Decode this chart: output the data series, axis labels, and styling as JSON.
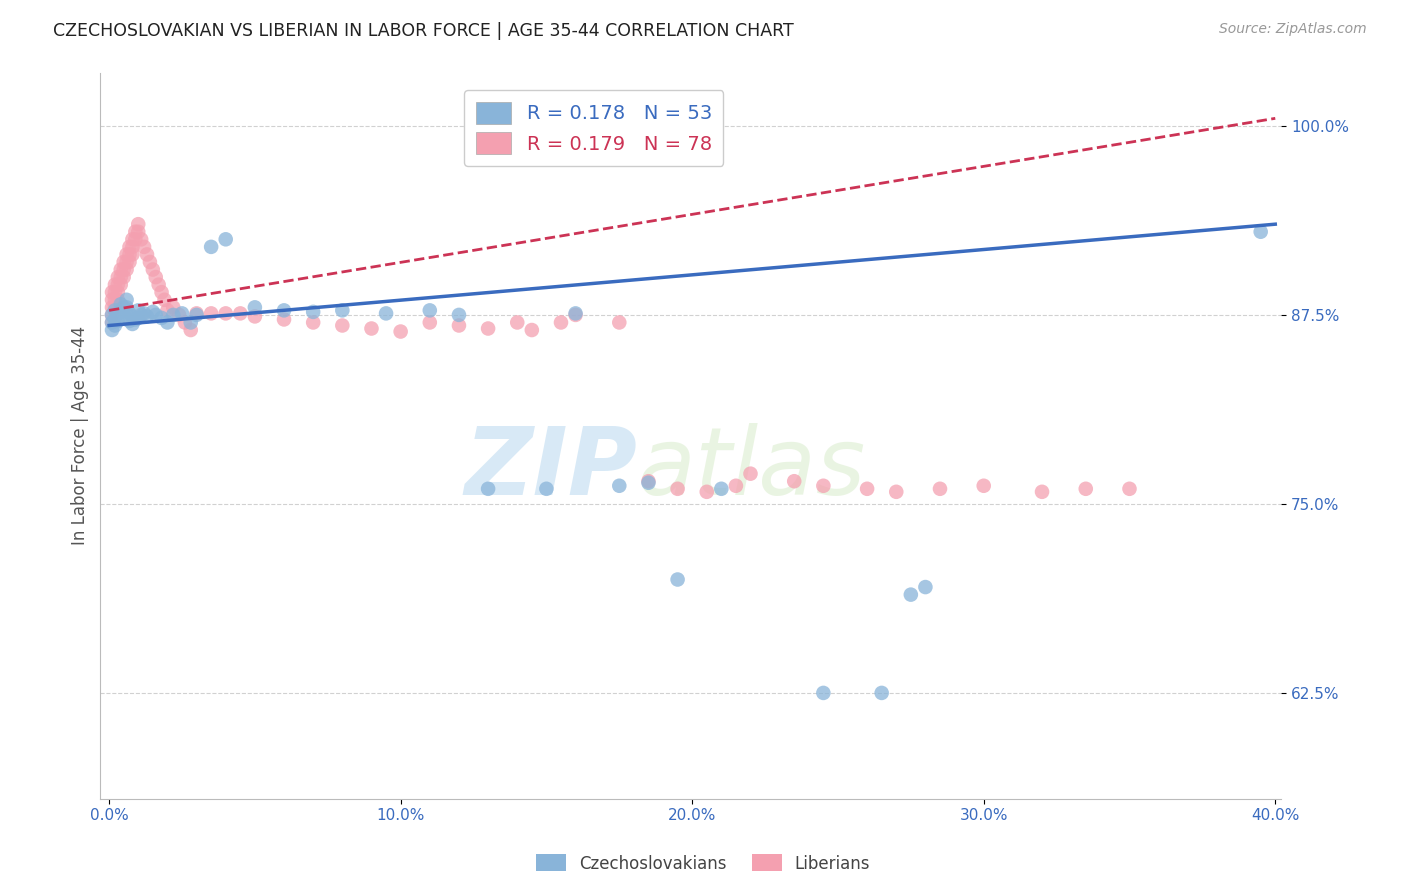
{
  "title": "CZECHOSLOVAKIAN VS LIBERIAN IN LABOR FORCE | AGE 35-44 CORRELATION CHART",
  "source": "Source: ZipAtlas.com",
  "ylabel": "In Labor Force | Age 35-44",
  "group1_label": "Czechoslovakians",
  "group2_label": "Liberians",
  "group1_color": "#89b4d9",
  "group2_color": "#f4a0b0",
  "trend1_color": "#3a6bbf",
  "trend2_color": "#cc3355",
  "xlim": [
    -0.003,
    0.402
  ],
  "ylim": [
    0.555,
    1.035
  ],
  "yticks": [
    0.625,
    0.75,
    0.875,
    1.0
  ],
  "ytick_labels": [
    "62.5%",
    "75.0%",
    "87.5%",
    "100.0%"
  ],
  "xticks": [
    0.0,
    0.1,
    0.2,
    0.3,
    0.4
  ],
  "xtick_labels": [
    "0.0%",
    "10.0%",
    "20.0%",
    "30.0%",
    "40.0%"
  ],
  "R1": 0.178,
  "N1": 53,
  "R2": 0.179,
  "N2": 78,
  "watermark_zip": "ZIP",
  "watermark_atlas": "atlas",
  "background_color": "#ffffff",
  "grid_color": "#cccccc",
  "trend1_x0": 0.0,
  "trend1_y0": 0.868,
  "trend1_x1": 0.4,
  "trend1_y1": 0.935,
  "trend2_x0": 0.0,
  "trend2_y0": 0.878,
  "trend2_x1": 0.4,
  "trend2_y1": 1.005,
  "czech_x": [
    0.001,
    0.001,
    0.001,
    0.002,
    0.002,
    0.002,
    0.003,
    0.003,
    0.004,
    0.004,
    0.005,
    0.005,
    0.006,
    0.006,
    0.007,
    0.007,
    0.008,
    0.008,
    0.009,
    0.01,
    0.01,
    0.011,
    0.012,
    0.013,
    0.015,
    0.016,
    0.018,
    0.02,
    0.022,
    0.025,
    0.028,
    0.03,
    0.035,
    0.04,
    0.05,
    0.06,
    0.07,
    0.08,
    0.095,
    0.11,
    0.12,
    0.13,
    0.15,
    0.16,
    0.175,
    0.185,
    0.195,
    0.21,
    0.245,
    0.265,
    0.275,
    0.28,
    0.395
  ],
  "czech_y": [
    0.875,
    0.87,
    0.865,
    0.878,
    0.872,
    0.868,
    0.876,
    0.871,
    0.882,
    0.877,
    0.88,
    0.875,
    0.885,
    0.88,
    0.876,
    0.871,
    0.874,
    0.869,
    0.872,
    0.878,
    0.873,
    0.875,
    0.876,
    0.874,
    0.877,
    0.875,
    0.873,
    0.87,
    0.875,
    0.876,
    0.87,
    0.875,
    0.92,
    0.925,
    0.88,
    0.878,
    0.877,
    0.878,
    0.876,
    0.878,
    0.875,
    0.76,
    0.76,
    0.876,
    0.762,
    0.764,
    0.7,
    0.76,
    0.625,
    0.625,
    0.69,
    0.695,
    0.93
  ],
  "liberian_x": [
    0.001,
    0.001,
    0.001,
    0.001,
    0.001,
    0.002,
    0.002,
    0.002,
    0.002,
    0.003,
    0.003,
    0.003,
    0.003,
    0.004,
    0.004,
    0.004,
    0.005,
    0.005,
    0.005,
    0.006,
    0.006,
    0.006,
    0.007,
    0.007,
    0.007,
    0.008,
    0.008,
    0.008,
    0.009,
    0.009,
    0.01,
    0.01,
    0.011,
    0.012,
    0.013,
    0.014,
    0.015,
    0.016,
    0.017,
    0.018,
    0.019,
    0.02,
    0.022,
    0.024,
    0.026,
    0.028,
    0.03,
    0.035,
    0.04,
    0.045,
    0.05,
    0.06,
    0.07,
    0.08,
    0.09,
    0.1,
    0.11,
    0.12,
    0.13,
    0.14,
    0.145,
    0.155,
    0.16,
    0.175,
    0.185,
    0.195,
    0.205,
    0.215,
    0.22,
    0.235,
    0.245,
    0.26,
    0.27,
    0.285,
    0.3,
    0.32,
    0.335,
    0.35
  ],
  "liberian_y": [
    0.89,
    0.885,
    0.88,
    0.875,
    0.87,
    0.895,
    0.89,
    0.885,
    0.88,
    0.9,
    0.895,
    0.89,
    0.885,
    0.905,
    0.9,
    0.895,
    0.91,
    0.905,
    0.9,
    0.915,
    0.91,
    0.905,
    0.92,
    0.915,
    0.91,
    0.925,
    0.92,
    0.915,
    0.93,
    0.925,
    0.935,
    0.93,
    0.925,
    0.92,
    0.915,
    0.91,
    0.905,
    0.9,
    0.895,
    0.89,
    0.885,
    0.878,
    0.88,
    0.875,
    0.87,
    0.865,
    0.876,
    0.876,
    0.876,
    0.876,
    0.874,
    0.872,
    0.87,
    0.868,
    0.866,
    0.864,
    0.87,
    0.868,
    0.866,
    0.87,
    0.865,
    0.87,
    0.875,
    0.87,
    0.765,
    0.76,
    0.758,
    0.762,
    0.77,
    0.765,
    0.762,
    0.76,
    0.758,
    0.76,
    0.762,
    0.758,
    0.76,
    0.76
  ]
}
